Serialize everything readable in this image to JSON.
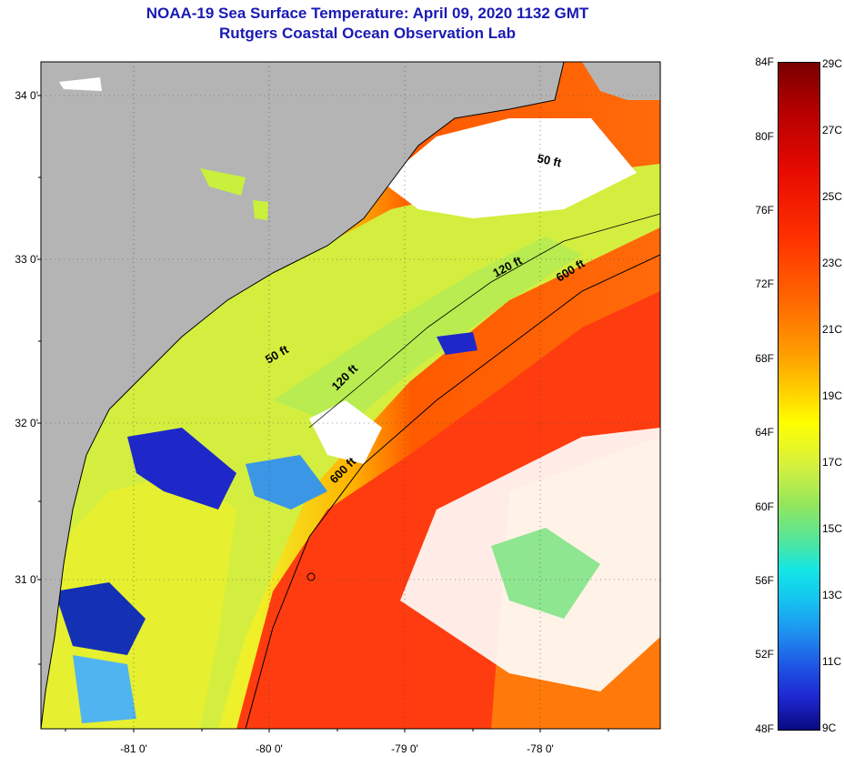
{
  "title": {
    "line1": "NOAA-19 Sea Surface Temperature:  April 09, 2020 1132 GMT",
    "line2": "Rutgers Coastal Ocean Observation Lab"
  },
  "map": {
    "lat_labels": [
      "34 0'",
      "33 0'",
      "32 0'",
      "31 0'"
    ],
    "lon_labels": [
      "-81 0'",
      "-80 0'",
      "-79 0'",
      "-78 0'"
    ],
    "contour_labels": [
      "50 ft",
      "120 ft",
      "600 ft",
      "50 ft",
      "120 ft",
      "600 ft"
    ],
    "colors": {
      "land": "#b4b4b4",
      "cloud": "#ffffff",
      "warm": "#ff3a0a",
      "cool": "#c8f03c"
    }
  },
  "colorbar": {
    "fahrenheit_labels": [
      "84F",
      "80F",
      "76F",
      "72F",
      "68F",
      "64F",
      "60F",
      "56F",
      "52F",
      "48F"
    ],
    "celsius_labels": [
      "29C",
      "27C",
      "25C",
      "23C",
      "21C",
      "19C",
      "17C",
      "15C",
      "13C",
      "11C",
      "9C"
    ]
  }
}
